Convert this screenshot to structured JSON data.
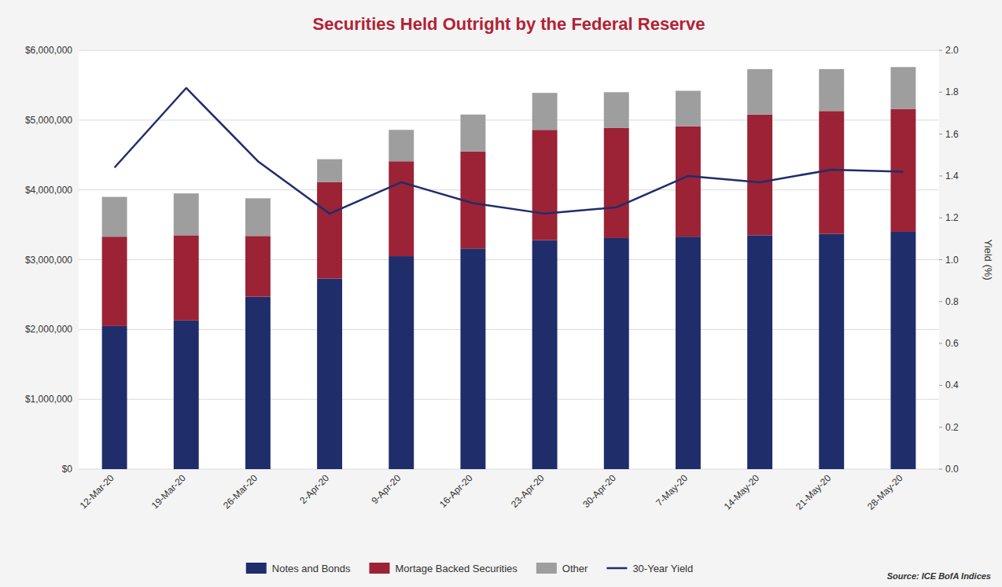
{
  "chart_data": {
    "type": "bar",
    "stacked": true,
    "title": "Securities Held Outright by the Federal Reserve",
    "y2label": "Yield (%)",
    "categories": [
      "12-Mar-20",
      "19-Mar-20",
      "26-Mar-20",
      "2-Apr-20",
      "9-Apr-20",
      "16-Apr-20",
      "23-Apr-20",
      "30-Apr-20",
      "7-May-20",
      "14-May-20",
      "21-May-20",
      "28-May-20"
    ],
    "series": [
      {
        "name": "Notes and Bonds",
        "type": "bar",
        "color": "#1F2D6B",
        "values": [
          2050000,
          2130000,
          2470000,
          2730000,
          3050000,
          3160000,
          3280000,
          3310000,
          3330000,
          3350000,
          3370000,
          3400000
        ]
      },
      {
        "name": "Mortage Backed Securities",
        "type": "bar",
        "color": "#9B2335",
        "values": [
          1280000,
          1220000,
          870000,
          1380000,
          1360000,
          1390000,
          1580000,
          1580000,
          1580000,
          1730000,
          1760000,
          1760000
        ]
      },
      {
        "name": "Other",
        "type": "bar",
        "color": "#9E9E9E",
        "values": [
          570000,
          600000,
          540000,
          330000,
          450000,
          530000,
          530000,
          510000,
          510000,
          650000,
          600000,
          600000
        ]
      },
      {
        "name": "30-Year Yield",
        "type": "line",
        "axis": "y2",
        "color": "#1F2D6B",
        "values": [
          1.44,
          1.82,
          1.47,
          1.22,
          1.37,
          1.27,
          1.22,
          1.25,
          1.4,
          1.37,
          1.43,
          1.42
        ]
      }
    ],
    "ylim": [
      0,
      6000000
    ],
    "yticks": [
      {
        "value": 0,
        "label": "$0"
      },
      {
        "value": 1000000,
        "label": "$1,000,000"
      },
      {
        "value": 2000000,
        "label": "$2,000,000"
      },
      {
        "value": 3000000,
        "label": "$3,000,000"
      },
      {
        "value": 4000000,
        "label": "$4,000,000"
      },
      {
        "value": 5000000,
        "label": "$5,000,000"
      },
      {
        "value": 6000000,
        "label": "$6,000,000"
      }
    ],
    "y2lim": [
      0.0,
      2.0
    ],
    "y2ticks": [
      {
        "value": 0,
        "label": "0.0"
      },
      0.2,
      0.4,
      0.6,
      0.8,
      {
        "value": 1,
        "label": "1.0"
      },
      1.2,
      1.4,
      1.6,
      1.8,
      {
        "value": 2,
        "label": "2.0"
      }
    ],
    "grid": true,
    "legend": "bottom",
    "annotations": [
      "Source: ICE BofA Indices"
    ]
  }
}
